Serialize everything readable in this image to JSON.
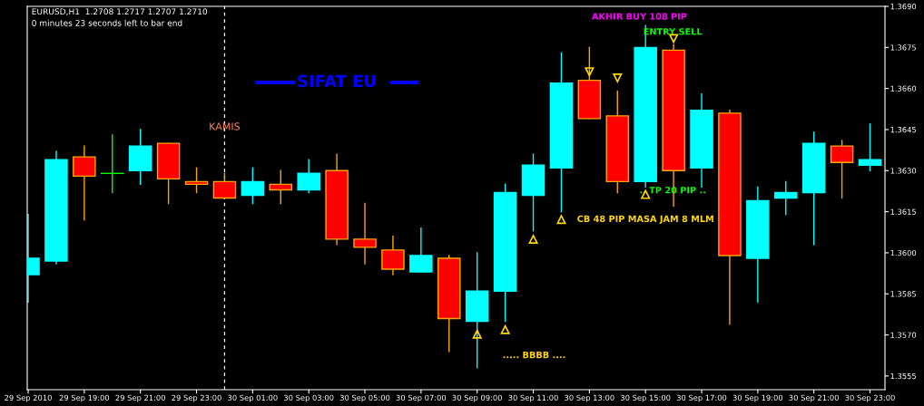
{
  "chart_data": {
    "type": "candlestick",
    "x": [
      "2010-09-29T17:00",
      "2010-09-29T18:00",
      "2010-09-29T19:00",
      "2010-09-29T20:00",
      "2010-09-29T21:00",
      "2010-09-29T22:00",
      "2010-09-29T23:00",
      "2010-09-30T00:00",
      "2010-09-30T01:00",
      "2010-09-30T02:00",
      "2010-09-30T03:00",
      "2010-09-30T04:00",
      "2010-09-30T05:00",
      "2010-09-30T06:00",
      "2010-09-30T07:00",
      "2010-09-30T08:00",
      "2010-09-30T09:00",
      "2010-09-30T10:00",
      "2010-09-30T11:00",
      "2010-09-30T12:00",
      "2010-09-30T13:00",
      "2010-09-30T14:00",
      "2010-09-30T15:00",
      "2010-09-30T16:00",
      "2010-09-30T17:00",
      "2010-09-30T18:00",
      "2010-09-30T19:00",
      "2010-09-30T20:00",
      "2010-09-30T21:00",
      "2010-09-30T22:00",
      "2010-09-30T23:00"
    ],
    "ohlc": [
      [
        1.3592,
        1.3614,
        1.3582,
        1.3598
      ],
      [
        1.3597,
        1.3637,
        1.3596,
        1.3634
      ],
      [
        1.3635,
        1.3639,
        1.3612,
        1.3628
      ],
      [
        1.3629,
        1.3643,
        1.3622,
        1.3629
      ],
      [
        1.363,
        1.3645,
        1.3625,
        1.3639
      ],
      [
        1.364,
        1.364,
        1.3618,
        1.3627
      ],
      [
        1.3626,
        1.3631,
        1.3622,
        1.3625
      ],
      [
        1.3626,
        1.3629,
        1.362,
        1.362
      ],
      [
        1.3621,
        1.3631,
        1.3618,
        1.3626
      ],
      [
        1.3625,
        1.363,
        1.3618,
        1.3623
      ],
      [
        1.3623,
        1.3634,
        1.3622,
        1.3629
      ],
      [
        1.363,
        1.3636,
        1.3603,
        1.3605
      ],
      [
        1.3605,
        1.3618,
        1.3596,
        1.3602
      ],
      [
        1.3601,
        1.3606,
        1.3592,
        1.3594
      ],
      [
        1.3593,
        1.3609,
        1.3593,
        1.3599
      ],
      [
        1.3598,
        1.3599,
        1.3564,
        1.3576
      ],
      [
        1.3575,
        1.36,
        1.3558,
        1.3586
      ],
      [
        1.3586,
        1.3625,
        1.3575,
        1.3622
      ],
      [
        1.3621,
        1.3636,
        1.3608,
        1.3632
      ],
      [
        1.3631,
        1.3673,
        1.3615,
        1.3662
      ],
      [
        1.3663,
        1.3675,
        1.3649,
        1.3649
      ],
      [
        1.365,
        1.3659,
        1.3622,
        1.3626
      ],
      [
        1.3626,
        1.3683,
        1.3624,
        1.3675
      ],
      [
        1.3674,
        1.3676,
        1.3617,
        1.363
      ],
      [
        1.3631,
        1.3658,
        1.3624,
        1.3652
      ],
      [
        1.3651,
        1.3652,
        1.3574,
        1.3599
      ],
      [
        1.3598,
        1.3624,
        1.3582,
        1.3619
      ],
      [
        1.362,
        1.3626,
        1.3614,
        1.3622
      ],
      [
        1.3622,
        1.3644,
        1.3603,
        1.364
      ],
      [
        1.3639,
        1.3641,
        1.362,
        1.3633
      ],
      [
        1.3632,
        1.3647,
        1.363,
        1.3634
      ]
    ],
    "colors": [
      "#00ffff",
      "#00ffff",
      "#ff0000",
      "#00ff00",
      "#00ffff",
      "#ff0000",
      "#ff0000",
      "#ff0000",
      "#00ffff",
      "#ff0000",
      "#00ffff",
      "#ff0000",
      "#ff0000",
      "#ff0000",
      "#00ffff",
      "#ff0000",
      "#00ffff",
      "#00ffff",
      "#00ffff",
      "#00ffff",
      "#ff0000",
      "#ff0000",
      "#00ffff",
      "#ff0000",
      "#00ffff",
      "#ff0000",
      "#00ffff",
      "#00ffff",
      "#00ffff",
      "#ff0000",
      "#00ffff"
    ],
    "xlim": [
      "2010-09-29T16:58",
      "2010-09-30T23:32"
    ],
    "xticks": [
      {
        "value": "2010-09-29T17:00",
        "label": "29 Sep 2010"
      },
      {
        "value": "2010-09-29T19:00",
        "label": "29 Sep 19:00"
      },
      {
        "value": "2010-09-29T21:00",
        "label": "29 Sep 21:00"
      },
      {
        "value": "2010-09-29T23:00",
        "label": "29 Sep 23:00"
      },
      {
        "value": "2010-09-30T01:00",
        "label": "30 Sep 01:00"
      },
      {
        "value": "2010-09-30T03:00",
        "label": "30 Sep 03:00"
      },
      {
        "value": "2010-09-30T05:00",
        "label": "30 Sep 05:00"
      },
      {
        "value": "2010-09-30T07:00",
        "label": "30 Sep 07:00"
      },
      {
        "value": "2010-09-30T09:00",
        "label": "30 Sep 09:00"
      },
      {
        "value": "2010-09-30T11:00",
        "label": "30 Sep 11:00"
      },
      {
        "value": "2010-09-30T13:00",
        "label": "30 Sep 13:00"
      },
      {
        "value": "2010-09-30T15:00",
        "label": "30 Sep 15:00"
      },
      {
        "value": "2010-09-30T17:00",
        "label": "30 Sep 17:00"
      },
      {
        "value": "2010-09-30T19:00",
        "label": "30 Sep 19:00"
      },
      {
        "value": "2010-09-30T21:00",
        "label": "30 Sep 21:00"
      },
      {
        "value": "2010-09-30T23:00",
        "label": "30 Sep 23:00"
      }
    ],
    "ylim": [
      1.355,
      1.369
    ],
    "yticks": [
      1.3555,
      {
        "value": 1.357,
        "label": "1.3570"
      },
      1.3585,
      {
        "value": 1.36,
        "label": "1.3600"
      },
      1.3615,
      {
        "value": 1.363,
        "label": "1.3630"
      },
      1.3645,
      {
        "value": 1.366,
        "label": "1.3660"
      },
      1.3675,
      {
        "value": 1.369,
        "label": "1.3690"
      }
    ],
    "grid": false,
    "legend": false,
    "ref_lines": [
      {
        "axis": "x",
        "value": "2010-09-30T00:00",
        "color": "#ffffff",
        "line_style": "dashed"
      }
    ],
    "annotations": [
      "EURUSD,H1  1.2708 1.2717 1.2707 1.2710",
      "0 minutes 23 seconds left to bar end",
      "KAMIS",
      "SIFAT EU",
      "AKHIR BUY 108 PIP",
      "ENTRY SELL",
      "CB 48 PIP MASA JAM 8 MLM",
      ".. TP 20 PIP ..",
      "..... BBBB ...."
    ]
  }
}
